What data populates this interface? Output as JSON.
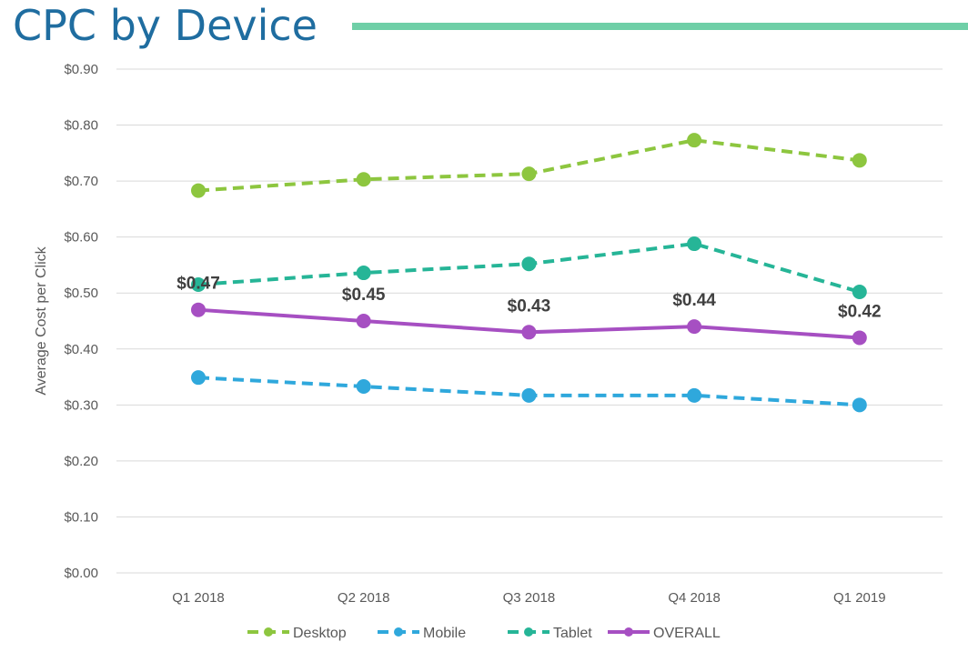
{
  "chart_data": {
    "type": "line",
    "title": "CPC by Device",
    "ylabel": "Average Cost per Click",
    "xlabel": "",
    "ylim": [
      0,
      0.9
    ],
    "yticks": [
      "$0.00",
      "$0.10",
      "$0.20",
      "$0.30",
      "$0.40",
      "$0.50",
      "$0.60",
      "$0.70",
      "$0.80",
      "$0.90"
    ],
    "categories": [
      "Q1 2018",
      "Q2 2018",
      "Q3 2018",
      "Q4 2018",
      "Q1 2019"
    ],
    "grid": true,
    "legend": "bottom",
    "series": [
      {
        "name": "Desktop",
        "color": "#8dc63f",
        "dashed": true,
        "values": [
          0.683,
          0.703,
          0.713,
          0.773,
          0.737
        ]
      },
      {
        "name": "Mobile",
        "color": "#2fa8dc",
        "dashed": true,
        "values": [
          0.349,
          0.333,
          0.317,
          0.317,
          0.3
        ]
      },
      {
        "name": "Tablet",
        "color": "#26b597",
        "dashed": true,
        "values": [
          0.515,
          0.536,
          0.552,
          0.588,
          0.502
        ]
      },
      {
        "name": "OVERALL",
        "color": "#a64fc2",
        "dashed": false,
        "values": [
          0.47,
          0.45,
          0.43,
          0.44,
          0.42
        ],
        "labels": [
          "$0.47",
          "$0.45",
          "$0.43",
          "$0.44",
          "$0.42"
        ]
      }
    ]
  }
}
